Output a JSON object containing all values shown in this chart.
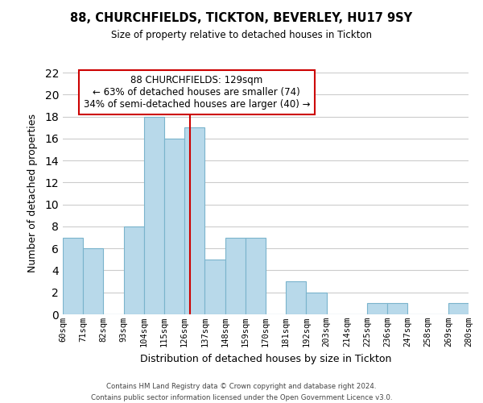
{
  "title": "88, CHURCHFIELDS, TICKTON, BEVERLEY, HU17 9SY",
  "subtitle": "Size of property relative to detached houses in Tickton",
  "xlabel": "Distribution of detached houses by size in Tickton",
  "ylabel": "Number of detached properties",
  "bar_edges": [
    60,
    71,
    82,
    93,
    104,
    115,
    126,
    137,
    148,
    159,
    170,
    181,
    192,
    203,
    214,
    225,
    236,
    247,
    258,
    269,
    280
  ],
  "bar_heights": [
    7,
    6,
    0,
    8,
    18,
    16,
    17,
    5,
    7,
    7,
    0,
    3,
    2,
    0,
    0,
    1,
    1,
    0,
    0,
    1
  ],
  "tick_labels": [
    "60sqm",
    "71sqm",
    "82sqm",
    "93sqm",
    "104sqm",
    "115sqm",
    "126sqm",
    "137sqm",
    "148sqm",
    "159sqm",
    "170sqm",
    "181sqm",
    "192sqm",
    "203sqm",
    "214sqm",
    "225sqm",
    "236sqm",
    "247sqm",
    "258sqm",
    "269sqm",
    "280sqm"
  ],
  "bar_color": "#b8d9ea",
  "bar_edge_color": "#7ab4cc",
  "grid_color": "#cccccc",
  "vline_x": 129,
  "vline_color": "#cc0000",
  "ylim": [
    0,
    22
  ],
  "yticks": [
    0,
    2,
    4,
    6,
    8,
    10,
    12,
    14,
    16,
    18,
    20,
    22
  ],
  "annotation_title": "88 CHURCHFIELDS: 129sqm",
  "annotation_line1": "← 63% of detached houses are smaller (74)",
  "annotation_line2": "34% of semi-detached houses are larger (40) →",
  "annotation_box_color": "#ffffff",
  "annotation_box_edge": "#cc0000",
  "footer_line1": "Contains HM Land Registry data © Crown copyright and database right 2024.",
  "footer_line2": "Contains public sector information licensed under the Open Government Licence v3.0.",
  "background_color": "#ffffff"
}
